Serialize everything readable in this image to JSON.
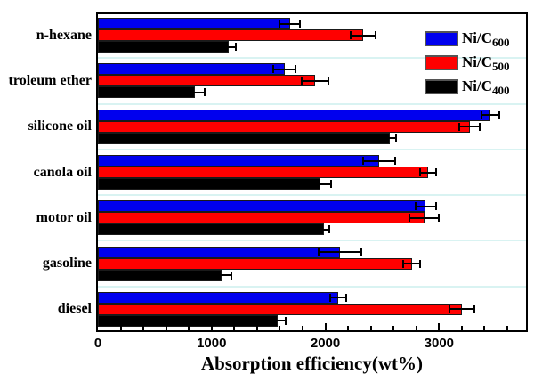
{
  "figure": {
    "xlabel": "Absorption efficiency(wt%)"
  },
  "legend": {
    "items": [
      {
        "main": "Ni/C",
        "sub": "600",
        "color": "#0000ee"
      },
      {
        "main": "Ni/C",
        "sub": "500",
        "color": "#ff0000"
      },
      {
        "main": "Ni/C",
        "sub": "400",
        "color": "#000000"
      }
    ]
  },
  "chart_data": {
    "type": "bar",
    "orientation": "horizontal",
    "title": "",
    "xlabel": "Absorption efficiency(wt%)",
    "ylabel": "",
    "categories": [
      "n-hexane",
      "troleum ether",
      "silicone oil",
      "canola oil",
      "motor oil",
      "gasoline",
      "diesel"
    ],
    "series": [
      {
        "name": "Ni/C600",
        "color": "#0000ee",
        "values": [
          1690,
          1640,
          3450,
          2470,
          2880,
          2130,
          2110
        ],
        "errors": [
          90,
          100,
          80,
          140,
          90,
          190,
          70
        ]
      },
      {
        "name": "Ni/C500",
        "color": "#ff0000",
        "values": [
          2330,
          1910,
          3270,
          2900,
          2870,
          2760,
          3200
        ],
        "errors": [
          110,
          120,
          90,
          70,
          130,
          75,
          110
        ]
      },
      {
        "name": "Ni/C400",
        "color": "#000000",
        "values": [
          1150,
          850,
          2570,
          1960,
          1990,
          1090,
          1580
        ],
        "errors": [
          60,
          90,
          50,
          90,
          45,
          80,
          75
        ]
      }
    ],
    "xlim": [
      0,
      3780
    ],
    "x_major_ticks": [
      0,
      1000,
      2000,
      3000
    ],
    "x_major_tick_labels": [
      "0",
      "1000",
      "2000",
      "3000"
    ],
    "x_minor_tick_step": 200,
    "grid": "light-cyan category separators",
    "legend_position": "top-right",
    "grid_color": "#d9f3f2",
    "error_bar_color": "#000000"
  }
}
